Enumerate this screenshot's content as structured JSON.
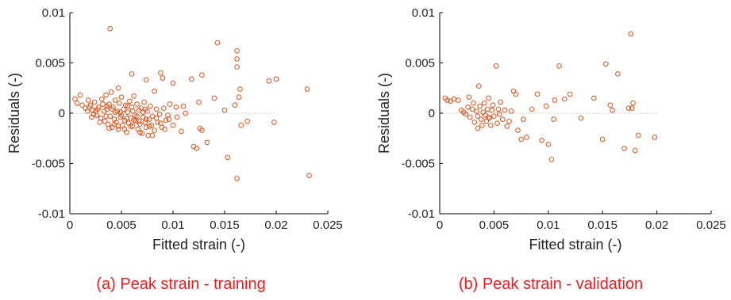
{
  "chart_data": [
    {
      "type": "scatter",
      "caption": "(a) Peak strain - training",
      "xlabel": "Fitted strain (-)",
      "ylabel": "Residuals (-)",
      "xlim": [
        0,
        0.025
      ],
      "ylim": [
        -0.01,
        0.01
      ],
      "xticks": [
        "0",
        "0.005",
        "0.01",
        "0.015",
        "0.02",
        "0.025"
      ],
      "yticks": [
        "0.01",
        "0.005",
        "0",
        "-0.005",
        "-0.01"
      ],
      "zero_line": true,
      "marker_color": "#d9541a",
      "points": [
        [
          0.0039,
          0.0084
        ],
        [
          0.0143,
          0.007
        ],
        [
          0.0162,
          0.0062
        ],
        [
          0.0162,
          0.0054
        ],
        [
          0.0162,
          0.0046
        ],
        [
          0.0088,
          0.004
        ],
        [
          0.006,
          0.0039
        ],
        [
          0.0128,
          0.0038
        ],
        [
          0.009,
          0.0035
        ],
        [
          0.0118,
          0.0034
        ],
        [
          0.02,
          0.0034
        ],
        [
          0.0074,
          0.0033
        ],
        [
          0.0193,
          0.0032
        ],
        [
          0.01,
          0.003
        ],
        [
          0.0047,
          0.0025
        ],
        [
          0.0082,
          0.0022
        ],
        [
          0.0165,
          0.0024
        ],
        [
          0.023,
          0.0024
        ],
        [
          0.014,
          0.0015
        ],
        [
          0.0125,
          0.0011
        ],
        [
          0.011,
          0.0007
        ],
        [
          0.0103,
          0.0006
        ],
        [
          0.016,
          0.0008
        ],
        [
          0.0164,
          0.0016
        ],
        [
          0.015,
          0.0003
        ],
        [
          0.0005,
          0.0014
        ],
        [
          0.0007,
          0.001
        ],
        [
          0.001,
          0.0018
        ],
        [
          0.0015,
          0.0005
        ],
        [
          0.0018,
          0.0013
        ],
        [
          0.002,
          0.0008
        ],
        [
          0.0022,
          0.0003
        ],
        [
          0.0024,
          0.0011
        ],
        [
          0.0026,
          -0.0002
        ],
        [
          0.0028,
          0.0006
        ],
        [
          0.003,
          -0.0005
        ],
        [
          0.0031,
          0.0014
        ],
        [
          0.0033,
          0.0002
        ],
        [
          0.0034,
          -0.0008
        ],
        [
          0.0035,
          0.0018
        ],
        [
          0.0036,
          0.0004
        ],
        [
          0.0037,
          -0.0011
        ],
        [
          0.0038,
          0.0009
        ],
        [
          0.0039,
          -0.0003
        ],
        [
          0.004,
          0.0021
        ],
        [
          0.0041,
          -0.0014
        ],
        [
          0.0042,
          0.0006
        ],
        [
          0.0043,
          -0.0006
        ],
        [
          0.0044,
          0.0013
        ],
        [
          0.0045,
          -0.0009
        ],
        [
          0.0046,
          0.0002
        ],
        [
          0.0047,
          -0.0016
        ],
        [
          0.0048,
          0.001
        ],
        [
          0.0049,
          -0.0004
        ],
        [
          0.005,
          0.0016
        ],
        [
          0.0051,
          -0.0012
        ],
        [
          0.0052,
          0.0004
        ],
        [
          0.0053,
          -0.0007
        ],
        [
          0.0054,
          0.0008
        ],
        [
          0.0055,
          -0.0019
        ],
        [
          0.0056,
          0.0001
        ],
        [
          0.0057,
          -0.001
        ],
        [
          0.0058,
          0.0012
        ],
        [
          0.0059,
          -0.0005
        ],
        [
          0.006,
          0.0006
        ],
        [
          0.0061,
          -0.0013
        ],
        [
          0.0062,
          0.0017
        ],
        [
          0.0063,
          -0.0002
        ],
        [
          0.0064,
          -0.0008
        ],
        [
          0.0065,
          0.0009
        ],
        [
          0.0066,
          -0.0016
        ],
        [
          0.0067,
          0.0003
        ],
        [
          0.0068,
          -0.0011
        ],
        [
          0.0069,
          0.0005
        ],
        [
          0.007,
          -0.002
        ],
        [
          0.0071,
          -0.0004
        ],
        [
          0.0072,
          0.0011
        ],
        [
          0.0073,
          -0.0009
        ],
        [
          0.0074,
          -0.0014
        ],
        [
          0.0075,
          0.0002
        ],
        [
          0.0076,
          -0.0022
        ],
        [
          0.0077,
          -0.0006
        ],
        [
          0.0078,
          0.0007
        ],
        [
          0.0079,
          -0.0012
        ],
        [
          0.008,
          -0.0003
        ],
        [
          0.0082,
          -0.0017
        ],
        [
          0.0084,
          0.0004
        ],
        [
          0.0085,
          -0.0009
        ],
        [
          0.0087,
          -0.0001
        ],
        [
          0.0089,
          -0.0014
        ],
        [
          0.0091,
          0.0005
        ],
        [
          0.0093,
          -0.0007
        ],
        [
          0.0095,
          -0.0002
        ],
        [
          0.0097,
          0.0009
        ],
        [
          0.01,
          -0.0012
        ],
        [
          0.0104,
          -0.0004
        ],
        [
          0.0108,
          -0.0018
        ],
        [
          0.0112,
          0.0
        ],
        [
          0.012,
          -0.0033
        ],
        [
          0.0123,
          -0.0035
        ],
        [
          0.0126,
          -0.0015
        ],
        [
          0.0128,
          -0.0017
        ],
        [
          0.0133,
          -0.0029
        ],
        [
          0.0153,
          -0.0044
        ],
        [
          0.0162,
          -0.0065
        ],
        [
          0.0166,
          -0.0012
        ],
        [
          0.0172,
          -0.0008
        ],
        [
          0.0198,
          -0.0009
        ],
        [
          0.0232,
          -0.0062
        ],
        [
          0.0012,
          0.0008
        ],
        [
          0.0017,
          0.0002
        ],
        [
          0.0021,
          -0.0004
        ],
        [
          0.0025,
          0.0002
        ],
        [
          0.0029,
          -0.0009
        ],
        [
          0.0032,
          0.0009
        ],
        [
          0.0035,
          -0.0003
        ],
        [
          0.0038,
          -0.0015
        ],
        [
          0.0041,
          0.0004
        ],
        [
          0.0044,
          0.0001
        ],
        [
          0.0047,
          -0.0013
        ],
        [
          0.005,
          -0.0002
        ],
        [
          0.0053,
          -0.0016
        ],
        [
          0.0056,
          0.0007
        ],
        [
          0.0059,
          -0.0013
        ],
        [
          0.0062,
          -0.0007
        ],
        [
          0.0065,
          -0.0003
        ],
        [
          0.0068,
          -0.0019
        ],
        [
          0.0071,
          0.0001
        ],
        [
          0.0074,
          -0.0006
        ],
        [
          0.0077,
          -0.0013
        ],
        [
          0.008,
          -0.0022
        ],
        [
          0.0084,
          -0.0005
        ],
        [
          0.0088,
          -0.001
        ],
        [
          0.0092,
          -0.0016
        ],
        [
          0.0096,
          -0.0006
        ],
        [
          0.0027,
          0.0004
        ],
        [
          0.0023,
          -0.0001
        ],
        [
          0.0019,
          0.0006
        ],
        [
          0.0036,
          0.0007
        ],
        [
          0.0043,
          -0.0011
        ],
        [
          0.0049,
          0.0001
        ],
        [
          0.0055,
          -0.0005
        ],
        [
          0.0061,
          0.0002
        ],
        [
          0.0067,
          -0.0008
        ],
        [
          0.0073,
          0.0004
        ]
      ]
    },
    {
      "type": "scatter",
      "caption": "(b) Peak strain - validation",
      "xlabel": "Fitted strain (-)",
      "ylabel": "Residuals (-)",
      "xlim": [
        0,
        0.025
      ],
      "ylim": [
        -0.01,
        0.01
      ],
      "xticks": [
        "0",
        "0.005",
        "0.01",
        "0.015",
        "0.02",
        "0.025"
      ],
      "yticks": [
        "0.01",
        "0.005",
        "0",
        "-0.005",
        "-0.01"
      ],
      "zero_line": true,
      "marker_color": "#d9541a",
      "points": [
        [
          0.0005,
          0.0015
        ],
        [
          0.0007,
          0.0013
        ],
        [
          0.001,
          0.0012
        ],
        [
          0.0013,
          0.0014
        ],
        [
          0.0017,
          0.0013
        ],
        [
          0.002,
          0.0003
        ],
        [
          0.0022,
          0.0001
        ],
        [
          0.0024,
          -0.0001
        ],
        [
          0.0026,
          0.0006
        ],
        [
          0.0027,
          0.0016
        ],
        [
          0.0028,
          -0.0004
        ],
        [
          0.003,
          0.0004
        ],
        [
          0.0031,
          0.001
        ],
        [
          0.0032,
          -0.0009
        ],
        [
          0.0034,
          0.0002
        ],
        [
          0.0035,
          -0.0003
        ],
        [
          0.0036,
          0.0027
        ],
        [
          0.0037,
          0.0007
        ],
        [
          0.0038,
          -0.0006
        ],
        [
          0.0039,
          -0.0012
        ],
        [
          0.004,
          0.0001
        ],
        [
          0.0041,
          0.001
        ],
        [
          0.0042,
          -0.0002
        ],
        [
          0.0043,
          -0.0008
        ],
        [
          0.0044,
          0.0004
        ],
        [
          0.0045,
          0.0015
        ],
        [
          0.0046,
          -0.0005
        ],
        [
          0.0047,
          -0.0012
        ],
        [
          0.0048,
          0.0003
        ],
        [
          0.0049,
          0.0008
        ],
        [
          0.005,
          -0.0003
        ],
        [
          0.0052,
          0.0047
        ],
        [
          0.0053,
          -0.001
        ],
        [
          0.0054,
          0.0004
        ],
        [
          0.0055,
          -0.0001
        ],
        [
          0.0056,
          0.0011
        ],
        [
          0.0058,
          -0.0006
        ],
        [
          0.006,
          0.0003
        ],
        [
          0.0062,
          -0.0013
        ],
        [
          0.0064,
          -0.0008
        ],
        [
          0.0066,
          0.0002
        ],
        [
          0.0068,
          0.0022
        ],
        [
          0.007,
          0.0019
        ],
        [
          0.0072,
          -0.0017
        ],
        [
          0.0075,
          -0.0026
        ],
        [
          0.0077,
          -0.0006
        ],
        [
          0.008,
          -0.0024
        ],
        [
          0.0085,
          0.0004
        ],
        [
          0.009,
          0.0019
        ],
        [
          0.0094,
          -0.0027
        ],
        [
          0.0098,
          0.0007
        ],
        [
          0.01,
          -0.0031
        ],
        [
          0.0103,
          -0.0046
        ],
        [
          0.0106,
          0.0013
        ],
        [
          0.011,
          0.0047
        ],
        [
          0.0115,
          0.0014
        ],
        [
          0.012,
          0.0019
        ],
        [
          0.013,
          -0.0005
        ],
        [
          0.0142,
          0.0015
        ],
        [
          0.015,
          -0.0026
        ],
        [
          0.0153,
          0.0049
        ],
        [
          0.0157,
          0.0008
        ],
        [
          0.0159,
          0.0003
        ],
        [
          0.0164,
          0.0039
        ],
        [
          0.017,
          -0.0035
        ],
        [
          0.0174,
          0.0005
        ],
        [
          0.0176,
          0.0079
        ],
        [
          0.0178,
          0.001
        ],
        [
          0.018,
          -0.0037
        ],
        [
          0.0183,
          -0.0022
        ],
        [
          0.0198,
          -0.0024
        ],
        [
          0.0105,
          -0.0006
        ],
        [
          0.0177,
          0.0005
        ],
        [
          0.0035,
          -0.0015
        ],
        [
          0.0045,
          -0.0004
        ]
      ]
    }
  ]
}
